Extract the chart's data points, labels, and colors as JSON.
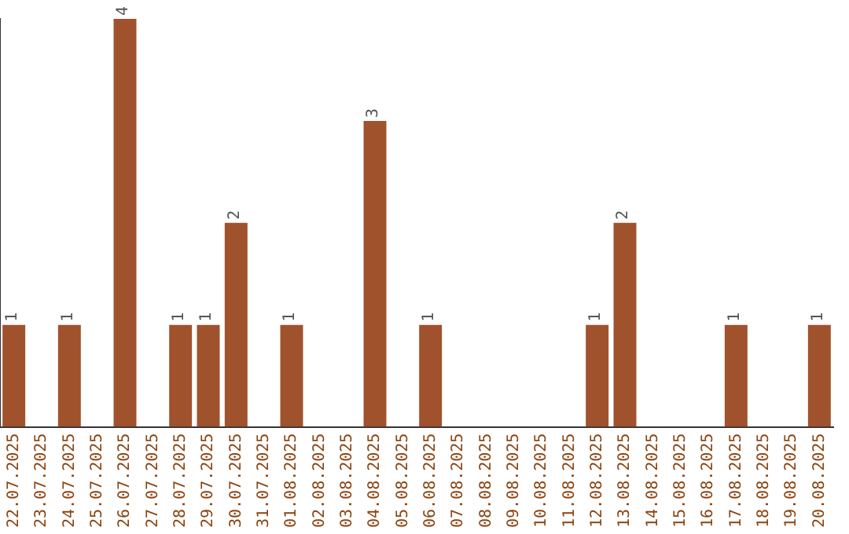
{
  "chart_data": {
    "type": "bar",
    "categories": [
      "22.07.2025",
      "23.07.2025",
      "24.07.2025",
      "25.07.2025",
      "26.07.2025",
      "27.07.2025",
      "28.07.2025",
      "29.07.2025",
      "30.07.2025",
      "31.07.2025",
      "01.08.2025",
      "02.08.2025",
      "03.08.2025",
      "04.08.2025",
      "05.08.2025",
      "06.08.2025",
      "07.08.2025",
      "08.08.2025",
      "09.08.2025",
      "10.08.2025",
      "11.08.2025",
      "12.08.2025",
      "13.08.2025",
      "14.08.2025",
      "15.08.2025",
      "16.08.2025",
      "17.08.2025",
      "18.08.2025",
      "19.08.2025",
      "20.08.2025"
    ],
    "values": [
      1,
      0,
      1,
      0,
      4,
      0,
      1,
      1,
      2,
      0,
      1,
      0,
      0,
      3,
      0,
      1,
      0,
      0,
      0,
      0,
      0,
      1,
      2,
      0,
      0,
      0,
      1,
      0,
      0,
      1
    ],
    "value_labels": [
      "1",
      null,
      "1",
      null,
      "4",
      null,
      "1",
      "1",
      "2",
      null,
      "1",
      null,
      null,
      "3",
      null,
      "1",
      null,
      null,
      null,
      null,
      null,
      "1",
      "2",
      null,
      null,
      null,
      "1",
      null,
      null,
      "1"
    ],
    "color": "#a0522d",
    "grid": false,
    "legend": false
  }
}
